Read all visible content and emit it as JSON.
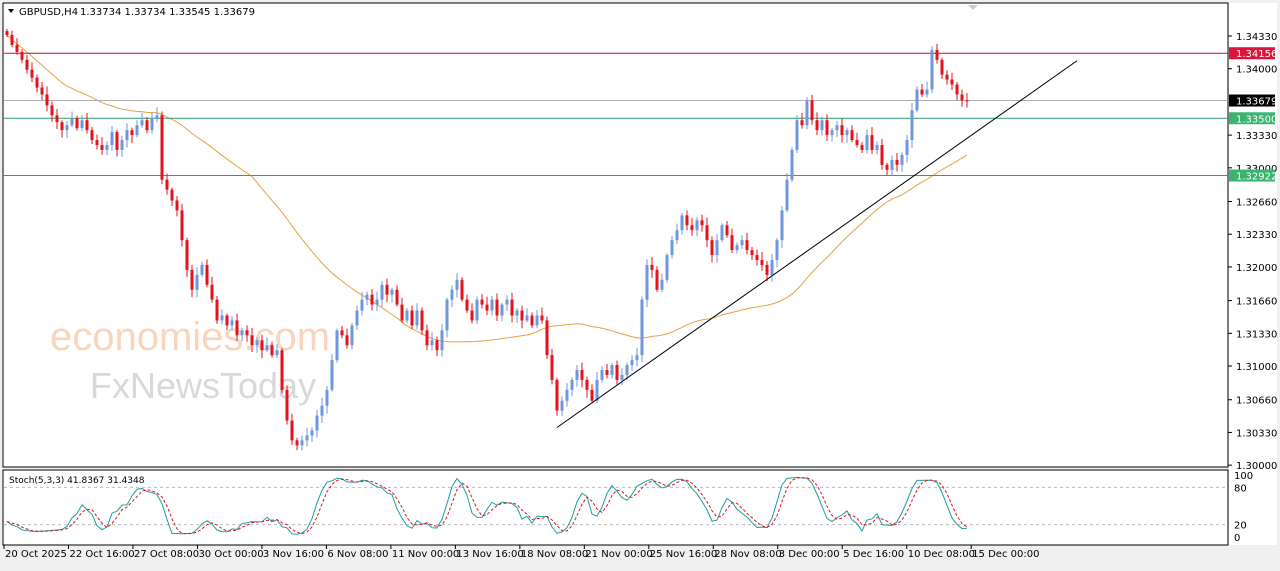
{
  "header": {
    "symbol": "GBPUSD,H4",
    "ohlc": "1.33734 1.33734 1.33545 1.33679"
  },
  "watermark": {
    "line1": "economies.com",
    "line2": "FxNewsToday"
  },
  "colors": {
    "up": "#6e97dc",
    "down": "#e3131c",
    "ma": "#e8a040",
    "resistance": "#c8102e",
    "support": "#2e9e6a",
    "current": "#000000",
    "stoch_k": "#1aa0a0",
    "stoch_d": "#e3131c"
  },
  "chart_data": [
    {
      "type": "candlestick",
      "title": "GBPUSD,H4",
      "ylim": [
        1.3,
        1.3465
      ],
      "yticks": [
        "1.34330",
        "1.34000",
        "1.33330",
        "1.33000",
        "1.32660",
        "1.32330",
        "1.32000",
        "1.31660",
        "1.31330",
        "1.31000",
        "1.30660",
        "1.30330",
        "1.30000"
      ],
      "xticks": [
        "20 Oct 2025",
        "22 Oct 16:00",
        "27 Oct 08:00",
        "30 Oct 00:00",
        "3 Nov 16:00",
        "6 Nov 08:00",
        "11 Nov 00:00",
        "13 Nov 16:00",
        "18 Nov 08:00",
        "21 Nov 00:00",
        "25 Nov 16:00",
        "28 Nov 08:00",
        "3 Dec 00:00",
        "5 Dec 16:00",
        "10 Dec 08:00",
        "15 Dec 00:00"
      ],
      "xtick_every_bars": 13,
      "close": [
        1.3434,
        1.3424,
        1.3417,
        1.3409,
        1.3399,
        1.3391,
        1.3381,
        1.3374,
        1.3363,
        1.3353,
        1.3346,
        1.3338,
        1.3343,
        1.335,
        1.334,
        1.3348,
        1.3338,
        1.3328,
        1.3323,
        1.3318,
        1.3323,
        1.3336,
        1.3318,
        1.3328,
        1.3338,
        1.3333,
        1.3343,
        1.3348,
        1.3338,
        1.335,
        1.3353,
        1.3288,
        1.3278,
        1.3267,
        1.3257,
        1.3227,
        1.3197,
        1.3177,
        1.3192,
        1.3202,
        1.3182,
        1.3167,
        1.3146,
        1.3151,
        1.3141,
        1.3146,
        1.3131,
        1.3136,
        1.3131,
        1.3121,
        1.3126,
        1.3116,
        1.3121,
        1.3111,
        1.3116,
        1.3076,
        1.3045,
        1.3025,
        1.302,
        1.3025,
        1.303,
        1.3035,
        1.305,
        1.306,
        1.3076,
        1.3106,
        1.3136,
        1.3131,
        1.3121,
        1.3141,
        1.3156,
        1.3167,
        1.3172,
        1.3162,
        1.3167,
        1.3182,
        1.3172,
        1.3177,
        1.3162,
        1.3146,
        1.3156,
        1.3141,
        1.3156,
        1.3136,
        1.3121,
        1.3126,
        1.3116,
        1.3136,
        1.3167,
        1.3177,
        1.3187,
        1.3167,
        1.3156,
        1.3146,
        1.3167,
        1.3162,
        1.3156,
        1.3167,
        1.3151,
        1.3162,
        1.3167,
        1.3151,
        1.3156,
        1.3146,
        1.3151,
        1.3141,
        1.3151,
        1.3146,
        1.3111,
        1.3086,
        1.3055,
        1.3065,
        1.3076,
        1.3086,
        1.3096,
        1.3086,
        1.3076,
        1.3065,
        1.3086,
        1.3096,
        1.3091,
        1.3101,
        1.3086,
        1.3091,
        1.3101,
        1.3106,
        1.3111,
        1.3167,
        1.3202,
        1.3197,
        1.3177,
        1.3187,
        1.3212,
        1.3227,
        1.3237,
        1.3252,
        1.3242,
        1.3237,
        1.3247,
        1.3242,
        1.3227,
        1.3212,
        1.3227,
        1.3242,
        1.3232,
        1.3217,
        1.3222,
        1.3227,
        1.3217,
        1.3212,
        1.3207,
        1.3202,
        1.3192,
        1.3207,
        1.3227,
        1.3257,
        1.3288,
        1.3318,
        1.3348,
        1.3343,
        1.3368,
        1.3348,
        1.3338,
        1.3348,
        1.3333,
        1.3338,
        1.3343,
        1.3333,
        1.3338,
        1.3328,
        1.3323,
        1.3318,
        1.3333,
        1.3318,
        1.3323,
        1.3303,
        1.3298,
        1.3308,
        1.3303,
        1.3313,
        1.3328,
        1.3358,
        1.3379,
        1.3374,
        1.3379,
        1.3419,
        1.3409,
        1.3394,
        1.3389,
        1.3384,
        1.3374,
        1.3368,
        1.33679
      ],
      "hlines": [
        {
          "price": "1.34156",
          "kind": "resistance"
        },
        {
          "price": "1.33679",
          "kind": "current"
        },
        {
          "price": "1.33500",
          "kind": "support"
        },
        {
          "price": "1.32922",
          "kind": "support"
        }
      ],
      "trendline": {
        "from": {
          "bar": 110,
          "price": 1.3038
        },
        "to": {
          "bar": 214,
          "price": 1.3408
        }
      },
      "moving_average": {
        "period": 50
      }
    },
    {
      "type": "line",
      "title": "Stoch(5,3,3) 41.8367 31.4348",
      "ylim": [
        0,
        100
      ],
      "yticks": [
        "100",
        "80",
        "20",
        "0"
      ],
      "levels": [
        80,
        20
      ]
    }
  ]
}
